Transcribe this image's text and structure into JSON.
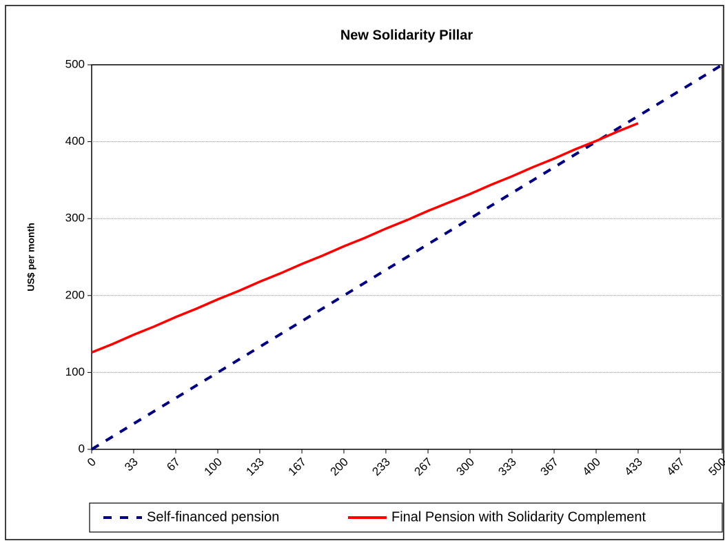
{
  "chart_data": {
    "type": "line",
    "title": "New Solidarity Pillar",
    "y_label": "US$ per month",
    "x": [
      0,
      16.7,
      33.3,
      50,
      66.7,
      83.3,
      100,
      116.7,
      133.3,
      150,
      166.7,
      183.3,
      200,
      216.7,
      233.3,
      250,
      266.7,
      283.3,
      300,
      316.7,
      333.3,
      350,
      366.7,
      383.3,
      400,
      416.7,
      433.3,
      450,
      466.7,
      483.3,
      500
    ],
    "series": [
      {
        "name": "Self-financed pension",
        "color": "#000080",
        "dash": true,
        "values": [
          0,
          16.7,
          33.3,
          50,
          66.7,
          83.3,
          100,
          116.7,
          133.3,
          150,
          166.7,
          183.3,
          200,
          216.7,
          233.3,
          250,
          266.7,
          283.3,
          300,
          316.7,
          333.3,
          350,
          366.7,
          383.3,
          400,
          416.7,
          433.3,
          450,
          466.7,
          483.3,
          500
        ]
      },
      {
        "name": "Final Pension with Solidarity Complement",
        "color": "#ff0000",
        "dash": false,
        "values": [
          126,
          137,
          149,
          160,
          172,
          183,
          195,
          206,
          218,
          229,
          241,
          252,
          264,
          275,
          287,
          298,
          310,
          321,
          332,
          344,
          355,
          367,
          378,
          390,
          401,
          413,
          424,
          null,
          null,
          null,
          null
        ]
      }
    ],
    "xlim": [
      0,
      500
    ],
    "xticks": [
      0,
      {
        "value": 33.3,
        "label": "33"
      },
      {
        "value": 66.7,
        "label": "67"
      },
      100,
      {
        "value": 133.3,
        "label": "133"
      },
      {
        "value": 166.7,
        "label": "167"
      },
      200,
      {
        "value": 233.3,
        "label": "233"
      },
      {
        "value": 266.7,
        "label": "267"
      },
      300,
      {
        "value": 333.3,
        "label": "333"
      },
      {
        "value": 366.7,
        "label": "367"
      },
      400,
      {
        "value": 433.3,
        "label": "433"
      },
      {
        "value": 466.7,
        "label": "467"
      },
      500
    ],
    "ylim": [
      0,
      500
    ],
    "yticks": [
      0,
      100,
      200,
      300,
      400,
      500
    ],
    "grid": true,
    "legend": "bottom"
  }
}
